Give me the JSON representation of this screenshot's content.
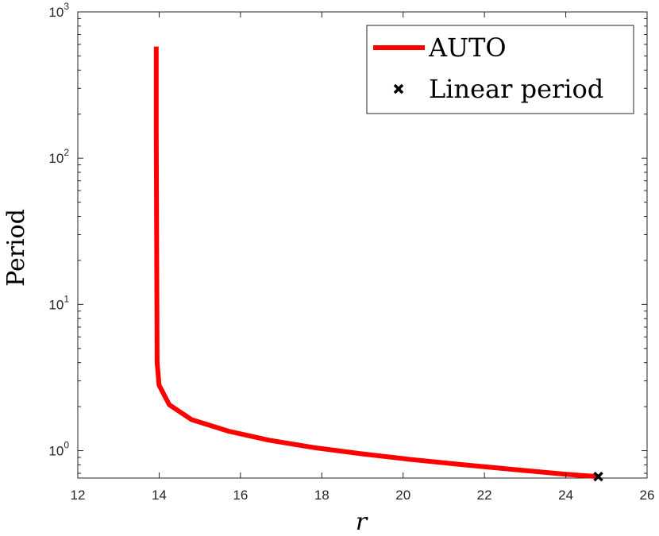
{
  "chart_data": {
    "type": "line",
    "xlabel": "r",
    "ylabel": "Period",
    "xlim": [
      12,
      26
    ],
    "ylim": [
      0.65,
      1000
    ],
    "yscale": "log",
    "grid": false,
    "legend_position": "top-right",
    "x_ticks": [
      12,
      14,
      16,
      18,
      20,
      22,
      24,
      26
    ],
    "y_ticks": [
      {
        "value": 1,
        "base": "10",
        "exp": "0"
      },
      {
        "value": 10,
        "base": "10",
        "exp": "1"
      },
      {
        "value": 100,
        "base": "10",
        "exp": "2"
      },
      {
        "value": 1000,
        "base": "10",
        "exp": "3"
      }
    ],
    "series": [
      {
        "name": "AUTO",
        "color": "#ff0000",
        "style": "line",
        "x": [
          13.93,
          13.93,
          13.94,
          13.95,
          14.0,
          14.25,
          14.8,
          15.7,
          16.7,
          17.8,
          19.0,
          20.2,
          21.5,
          22.8,
          24.0,
          24.8
        ],
        "y": [
          580,
          150,
          20,
          4.0,
          2.8,
          2.06,
          1.63,
          1.36,
          1.18,
          1.05,
          0.95,
          0.87,
          0.8,
          0.74,
          0.69,
          0.665
        ]
      },
      {
        "name": "Linear period",
        "color": "#000000",
        "style": "marker",
        "marker": "x",
        "x": [
          24.8
        ],
        "y": [
          0.665
        ]
      }
    ]
  }
}
